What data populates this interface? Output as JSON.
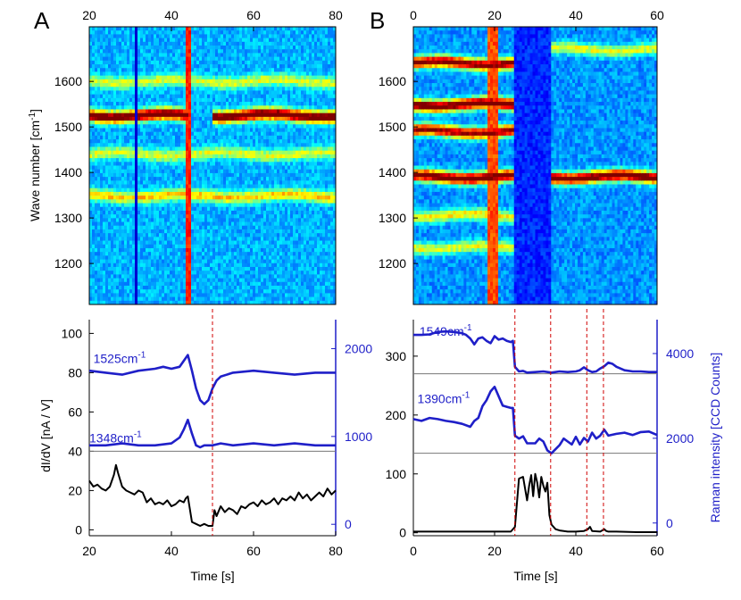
{
  "figure": {
    "panel_a_label": "A",
    "panel_b_label": "B",
    "ylabel_heatmap": "Wave number [cm",
    "ylabel_heatmap_sup": "-1",
    "ylabel_heatmap_tail": "]",
    "ylabel_trace_left": "dI/dV [nA / V]",
    "ylabel_trace_right": "Raman intensity [CCD Counts]",
    "xlabel_a": "Time [s]",
    "xlabel_b": "Time [s]"
  },
  "colors": {
    "raman_line": "#1f1fc8",
    "conductance_line": "#000000",
    "marker_line": "#d00000",
    "right_axis": "#1f1fc8",
    "baseline": "#777777"
  },
  "chart_data": [
    {
      "id": "A-heatmap",
      "type": "heatmap",
      "title": "A",
      "xlabel": "",
      "ylabel": "Wave number [cm-1]",
      "xlim": [
        20,
        80
      ],
      "ylim": [
        1110,
        1720
      ],
      "x_ticks": [
        20,
        40,
        60,
        80
      ],
      "y_ticks": [
        1200,
        1300,
        1400,
        1500,
        1600
      ],
      "bands": [
        {
          "wavenumber": 1525,
          "intensity": 0.95,
          "segments": [
            [
              20,
              44
            ],
            [
              50,
              80
            ]
          ]
        },
        {
          "wavenumber": 1348,
          "intensity": 0.45,
          "segments": [
            [
              20,
              80
            ]
          ]
        },
        {
          "wavenumber": 1440,
          "intensity": 0.35,
          "segments": [
            [
              20,
              80
            ]
          ]
        },
        {
          "wavenumber": 1600,
          "intensity": 0.35,
          "segments": [
            [
              20,
              80
            ]
          ]
        }
      ],
      "vertical_events": [
        {
          "time": 44.3,
          "width": 1.6,
          "intensity": 0.85
        },
        {
          "time": 31.5,
          "width": 1.0,
          "intensity": 0.02
        }
      ]
    },
    {
      "id": "B-heatmap",
      "type": "heatmap",
      "title": "B",
      "xlabel": "",
      "ylabel": "",
      "xlim": [
        0,
        60
      ],
      "ylim": [
        1110,
        1720
      ],
      "x_ticks": [
        0,
        20,
        40,
        60
      ],
      "y_ticks": [
        1200,
        1300,
        1400,
        1500,
        1600
      ],
      "bands": [
        {
          "wavenumber": 1640,
          "intensity": 0.9,
          "segments": [
            [
              0,
              25
            ]
          ]
        },
        {
          "wavenumber": 1549,
          "intensity": 0.95,
          "segments": [
            [
              0,
              25
            ]
          ]
        },
        {
          "wavenumber": 1490,
          "intensity": 0.85,
          "segments": [
            [
              0,
              25
            ]
          ]
        },
        {
          "wavenumber": 1390,
          "intensity": 0.95,
          "segments": [
            [
              0,
              25
            ],
            [
              34,
              60
            ]
          ]
        },
        {
          "wavenumber": 1305,
          "intensity": 0.45,
          "segments": [
            [
              0,
              25
            ]
          ]
        },
        {
          "wavenumber": 1235,
          "intensity": 0.4,
          "segments": [
            [
              0,
              25
            ]
          ]
        },
        {
          "wavenumber": 1670,
          "intensity": 0.4,
          "segments": [
            [
              34,
              60
            ]
          ]
        }
      ],
      "vertical_events": [
        {
          "time": 19.5,
          "width": 3.0,
          "intensity": 0.8
        }
      ],
      "dim_region": [
        25,
        34
      ]
    },
    {
      "id": "A-traces",
      "type": "line",
      "xlabel": "Time [s]",
      "ylabel": "dI/dV [nA / V]",
      "y2label": "Raman intensity [CCD Counts]",
      "xlim": [
        20,
        80
      ],
      "ylim": [
        -3,
        107
      ],
      "y2lim": [
        -130,
        2330
      ],
      "x_ticks": [
        20,
        40,
        60,
        80
      ],
      "y_ticks": [
        0,
        20,
        40,
        60,
        80,
        100
      ],
      "y2_ticks": [
        0,
        1000,
        2000
      ],
      "baselines_y": [
        40
      ],
      "markers_x": [
        50
      ],
      "annotations": [
        {
          "text": "1525cm",
          "sup": "-1",
          "x": 21,
          "y": 85
        },
        {
          "text": "1348cm",
          "sup": "-1",
          "x": 20,
          "y": 44.5
        }
      ],
      "series": [
        {
          "name": "1525cm-1",
          "axis": "y",
          "x": [
            20,
            24,
            28,
            32,
            36,
            38,
            40,
            42,
            44,
            45,
            46,
            47,
            48,
            49,
            50,
            51,
            52,
            55,
            60,
            65,
            70,
            75,
            80
          ],
          "values": [
            81,
            80,
            79,
            81,
            82,
            83,
            82,
            83,
            89,
            81,
            72,
            66,
            64,
            66,
            72,
            76,
            78,
            80,
            81,
            80,
            79,
            80,
            80
          ]
        },
        {
          "name": "1348cm-1",
          "axis": "y",
          "x": [
            20,
            24,
            28,
            32,
            36,
            40,
            42,
            43,
            44,
            45,
            46,
            47,
            48,
            50,
            52,
            55,
            60,
            65,
            70,
            75,
            80
          ],
          "values": [
            43,
            43,
            44,
            43,
            43,
            44,
            47,
            51,
            56,
            49,
            43,
            42,
            43,
            43,
            44,
            43,
            44,
            43,
            44,
            43,
            43
          ]
        },
        {
          "name": "dI/dV",
          "axis": "y",
          "x": [
            20,
            21,
            22,
            23,
            24,
            25,
            26,
            26.5,
            27,
            28,
            29,
            30,
            31,
            32,
            33,
            34,
            35,
            36,
            37,
            38,
            39,
            40,
            41,
            42,
            43,
            43.5,
            44,
            45,
            46,
            47,
            48,
            49,
            49.5,
            50,
            50.5,
            51,
            52,
            53,
            54,
            55,
            56,
            57,
            58,
            59,
            60,
            61,
            62,
            63,
            64,
            65,
            66,
            67,
            68,
            69,
            70,
            71,
            72,
            73,
            74,
            75,
            76,
            77,
            78,
            79,
            80
          ],
          "values": [
            25,
            22,
            23,
            21,
            20,
            22,
            28,
            33,
            29,
            22,
            20,
            19,
            18,
            20,
            19,
            14,
            16,
            13,
            14,
            13,
            15,
            12,
            13,
            15,
            14,
            16,
            17,
            4,
            3,
            2,
            3,
            2,
            2,
            2,
            10,
            7,
            12,
            9,
            11,
            10,
            8,
            12,
            11,
            13,
            14,
            12,
            15,
            13,
            14,
            16,
            13,
            16,
            15,
            17,
            15,
            19,
            16,
            18,
            15,
            17,
            19,
            17,
            21,
            18,
            20
          ]
        }
      ]
    },
    {
      "id": "B-traces",
      "type": "line",
      "xlabel": "Time [s]",
      "ylabel": "",
      "y2label": "Raman intensity [CCD Counts]",
      "xlim": [
        0,
        60
      ],
      "ylim": [
        -5,
        362
      ],
      "y2lim": [
        -300,
        4800
      ],
      "x_ticks": [
        0,
        20,
        40,
        60
      ],
      "y_ticks": [
        0,
        100,
        200,
        300
      ],
      "y2_ticks": [
        0,
        2000,
        4000
      ],
      "baselines_y": [
        135,
        270
      ],
      "markers_x": [
        25,
        33.8,
        42.7,
        46.8
      ],
      "annotations": [
        {
          "text": "1549cm",
          "sup": "-1",
          "x": 1.5,
          "y": 335
        },
        {
          "text": "1390cm",
          "sup": "-1",
          "x": 1,
          "y": 220
        }
      ],
      "series": [
        {
          "name": "1549cm-1",
          "axis": "y",
          "x": [
            0,
            2,
            4,
            6,
            8,
            10,
            12,
            13,
            14,
            15,
            16,
            17,
            18,
            19,
            20,
            21,
            22,
            23,
            24,
            24.5,
            25,
            26,
            27,
            28,
            30,
            32,
            34,
            36,
            38,
            40,
            41,
            42,
            43,
            44,
            45,
            46,
            47,
            48,
            49,
            50,
            52,
            54,
            56,
            58,
            60
          ],
          "values": [
            336,
            336,
            337,
            341,
            342,
            341,
            339,
            336,
            330,
            320,
            330,
            332,
            326,
            322,
            334,
            328,
            330,
            326,
            324,
            326,
            282,
            274,
            275,
            272,
            273,
            274,
            272,
            274,
            273,
            274,
            276,
            281,
            276,
            273,
            274,
            279,
            283,
            289,
            287,
            282,
            276,
            274,
            274,
            273,
            273
          ]
        },
        {
          "name": "1390cm-1",
          "axis": "y",
          "x": [
            0,
            2,
            4,
            6,
            8,
            10,
            12,
            14,
            15,
            16,
            17,
            18,
            19,
            20,
            21,
            22,
            23,
            24,
            24.5,
            25,
            26,
            27,
            28,
            30,
            31,
            32,
            33,
            34,
            35,
            36,
            37,
            38,
            39,
            40,
            41,
            42,
            43,
            44,
            45,
            46,
            47,
            48,
            50,
            52,
            54,
            56,
            58,
            60
          ],
          "values": [
            193,
            190,
            195,
            193,
            190,
            188,
            185,
            180,
            190,
            195,
            215,
            225,
            240,
            248,
            232,
            216,
            214,
            212,
            212,
            165,
            160,
            164,
            152,
            152,
            160,
            155,
            140,
            135,
            142,
            149,
            160,
            155,
            150,
            163,
            150,
            161,
            155,
            170,
            160,
            165,
            175,
            165,
            168,
            170,
            166,
            171,
            172,
            166
          ]
        },
        {
          "name": "dI/dV",
          "axis": "y",
          "x": [
            0,
            5,
            10,
            15,
            20,
            24,
            25,
            26,
            27,
            28,
            28.5,
            29,
            29.5,
            30,
            30.5,
            31,
            31.5,
            32,
            32.5,
            33,
            33.5,
            34,
            35,
            36,
            37,
            38,
            40,
            42,
            43,
            43.5,
            44,
            46,
            47,
            47.5,
            48,
            50,
            55,
            60
          ],
          "values": [
            2,
            2,
            2,
            2,
            2,
            2,
            10,
            92,
            95,
            55,
            80,
            98,
            62,
            100,
            85,
            60,
            95,
            80,
            70,
            85,
            30,
            14,
            6,
            4,
            3,
            2,
            2,
            3,
            6,
            10,
            3,
            2,
            6,
            3,
            2,
            2,
            1,
            1
          ]
        }
      ]
    }
  ]
}
